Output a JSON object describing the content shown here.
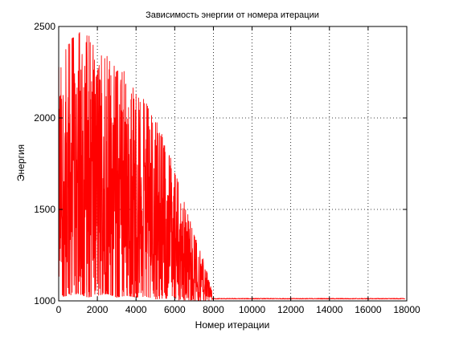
{
  "chart_data": {
    "type": "line",
    "title": "Зависимость энергии от номера итерации",
    "xlabel": "Номер итерации",
    "ylabel": "Энергия",
    "xlim": [
      0,
      18000
    ],
    "ylim": [
      1000,
      2500
    ],
    "xticks": [
      0,
      2000,
      4000,
      6000,
      8000,
      10000,
      12000,
      14000,
      16000,
      18000
    ],
    "yticks": [
      1000,
      1500,
      2000,
      2500
    ],
    "grid": true,
    "grid_style": "dotted",
    "legend": "none",
    "series": [
      {
        "color": "#ff0000",
        "envelope": {
          "x": [
            0,
            500,
            1000,
            1500,
            2000,
            2500,
            3000,
            3500,
            4000,
            4500,
            5000,
            5500,
            6000,
            6500,
            7000,
            7500,
            7800,
            8000,
            8500,
            10000,
            12000,
            14000,
            16000,
            17900
          ],
          "y_max": [
            2280,
            2420,
            2490,
            2470,
            2390,
            2340,
            2300,
            2260,
            2150,
            2090,
            2000,
            1870,
            1720,
            1540,
            1380,
            1230,
            1100,
            1030,
            1020,
            1015,
            1012,
            1012,
            1012,
            1012
          ],
          "y_min": [
            1020,
            1030,
            1040,
            1020,
            1030,
            1040,
            1020,
            1030,
            1020,
            1025,
            1010,
            1015,
            1005,
            1005,
            1003,
            1002,
            1002,
            1010,
            1010,
            1010,
            1010,
            1010,
            1010,
            1010
          ]
        },
        "plateau_value": 1012
      }
    ]
  }
}
